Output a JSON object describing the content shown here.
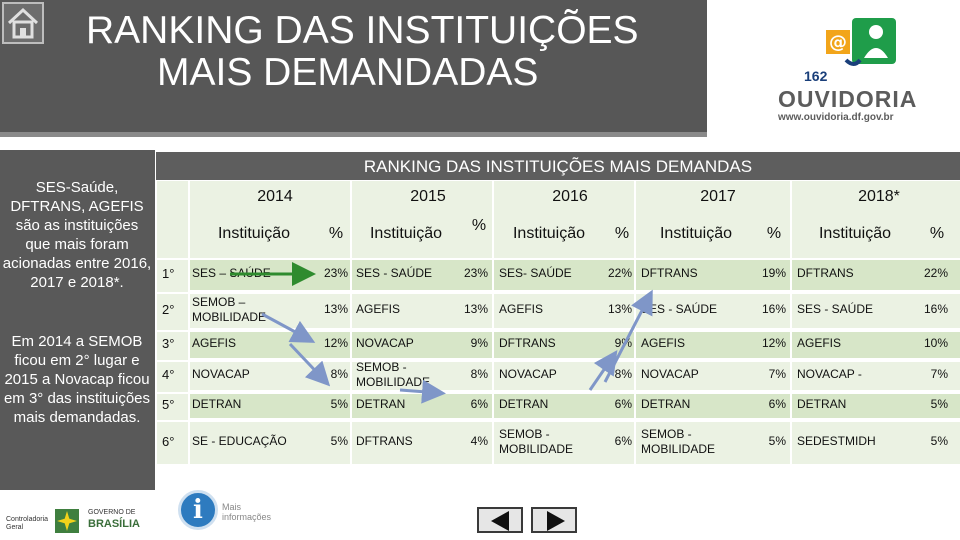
{
  "header": {
    "title_line1": "RANKING DAS INSTITUIÇÕES",
    "title_line2": "MAIS DEMANDADAS"
  },
  "logo": {
    "number": "162",
    "name": "OUVIDORIA",
    "url": "www.ouvidoria.df.gov.br"
  },
  "sidebar": {
    "text1": "SES-Saúde, DFTRANS, AGEFIS são as instituições que mais foram acionadas entre 2016, 2017 e 2018*.",
    "text2": "Em 2014 a SEMOB ficou em 2° lugar e 2015 a Novacap ficou em 3° das instituições mais demandadas."
  },
  "table": {
    "title": "RANKING DAS INSTITUIÇÕES MAIS DEMANDAS",
    "years": [
      "2014",
      "2015",
      "2016",
      "2017",
      "2018*"
    ],
    "inst_label": "Instituição",
    "pct_label": "%",
    "positions": [
      "1°",
      "2°",
      "3°",
      "4°",
      "5°",
      "6°"
    ],
    "rows": [
      [
        [
          "SES – SAÚDE",
          "23%"
        ],
        [
          "SES - SAÚDE",
          "23%"
        ],
        [
          "SES- SAÚDE",
          "22%"
        ],
        [
          "DFTRANS",
          "19%"
        ],
        [
          "DFTRANS",
          "22%"
        ]
      ],
      [
        [
          "SEMOB – MOBILIDADE",
          "13%"
        ],
        [
          "AGEFIS",
          "13%"
        ],
        [
          "AGEFIS",
          "13%"
        ],
        [
          "SES - SAÚDE",
          "16%"
        ],
        [
          "SES - SAÚDE",
          "16%"
        ]
      ],
      [
        [
          "AGEFIS",
          "12%"
        ],
        [
          "NOVACAP",
          "9%"
        ],
        [
          "DFTRANS",
          "9%"
        ],
        [
          "AGEFIS",
          "12%"
        ],
        [
          "AGEFIS",
          "10%"
        ]
      ],
      [
        [
          "NOVACAP",
          "8%"
        ],
        [
          "SEMOB - MOBILIDADE",
          "8%"
        ],
        [
          "NOVACAP",
          "8%"
        ],
        [
          "NOVACAP",
          "7%"
        ],
        [
          "NOVACAP -",
          "7%"
        ]
      ],
      [
        [
          "DETRAN",
          "5%"
        ],
        [
          "DETRAN",
          "6%"
        ],
        [
          "DETRAN",
          "6%"
        ],
        [
          "DETRAN",
          "6%"
        ],
        [
          "DETRAN",
          "5%"
        ]
      ],
      [
        [
          "SE - EDUCAÇÃO",
          "5%"
        ],
        [
          "DFTRANS",
          "4%"
        ],
        [
          "SEMOB - MOBILIDADE",
          "6%"
        ],
        [
          "SEMOB - MOBILIDADE",
          "5%"
        ],
        [
          "SEDESTMIDH",
          "5%"
        ]
      ]
    ]
  },
  "footer": {
    "info_label": "Mais informações",
    "gov_label": "GOVERNO DE",
    "gov_name": "BRASÍLIA",
    "cg_label": "Controladoria Geral"
  },
  "icons": {
    "home": "home-icon",
    "info": "info-icon",
    "prev": "arrow-left-icon",
    "next": "arrow-right-icon"
  },
  "colors": {
    "header_bg": "#575757",
    "cell_green": "#d7e6c8",
    "cell_light": "#ebf2e3",
    "arrow_green": "#2e8b2e",
    "arrow_blue": "#7f96c8"
  }
}
